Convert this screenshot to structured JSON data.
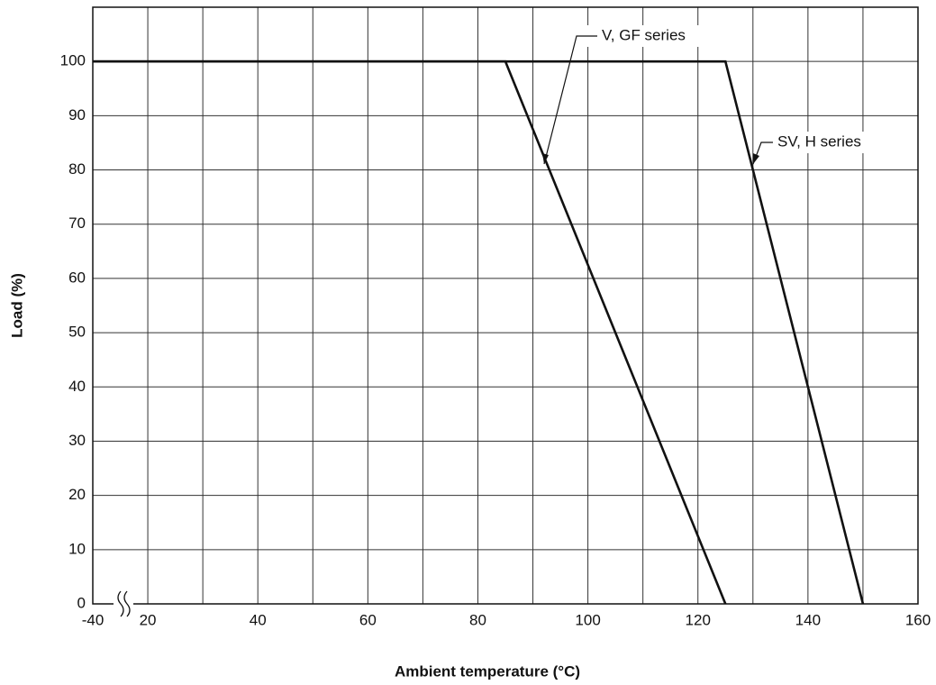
{
  "chart_data": {
    "type": "line",
    "x_label": "Ambient temperature (°C)",
    "y_label": "Load (%)",
    "xlim": [
      -40,
      160
    ],
    "xticks": [
      -40,
      20,
      40,
      60,
      80,
      100,
      120,
      140,
      160
    ],
    "x_axis_break": true,
    "ylim": [
      0,
      110
    ],
    "yticks": [
      0,
      10,
      20,
      30,
      40,
      50,
      60,
      70,
      80,
      90,
      100
    ],
    "grid": true,
    "series": [
      {
        "name": "V, GF series",
        "color": "#111111",
        "x": [
          -40,
          85,
          125
        ],
        "values": [
          100,
          100,
          0
        ]
      },
      {
        "name": "SV, H series",
        "color": "#111111",
        "x": [
          -40,
          125,
          150
        ],
        "values": [
          100,
          100,
          0
        ]
      }
    ]
  }
}
